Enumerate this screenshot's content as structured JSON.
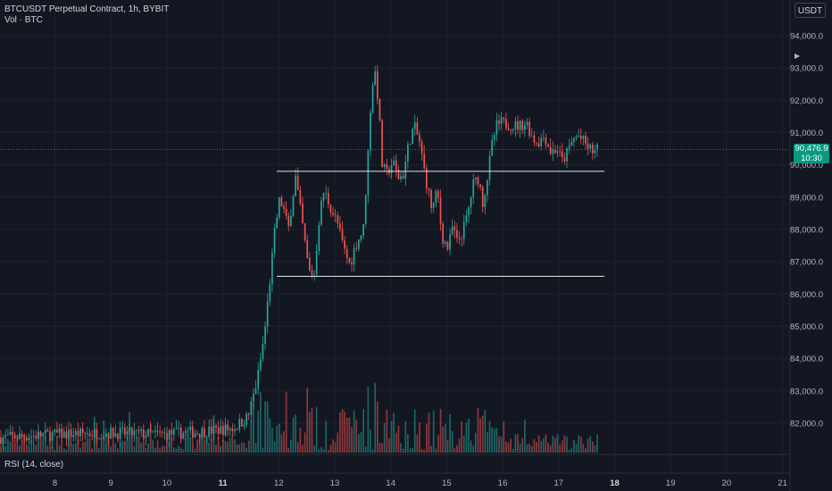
{
  "legend": {
    "title": "BTCUSDT Perpetual Contract, 1h, BYBIT",
    "volume_label": "Vol · BTC"
  },
  "currency": "USDT",
  "last_price": {
    "value": "90,476.9",
    "countdown": "10:30"
  },
  "rsi_label": "RSI (14, close)",
  "colors": {
    "background": "#131722",
    "up": "#26a69a",
    "down": "#ef5350",
    "grid": "#1e222d",
    "text": "#b2b5be",
    "level_line": "#e0e3eb",
    "price_line": "#089981"
  },
  "chart_data": {
    "type": "candlestick",
    "x_axis": {
      "tick_labels": [
        "8",
        "9",
        "10",
        "11",
        "12",
        "13",
        "14",
        "15",
        "16",
        "17",
        "18",
        "19",
        "20",
        "21"
      ],
      "bold_labels": [
        "11",
        "18"
      ]
    },
    "y_axis": {
      "tick_labels": [
        "82,000.0",
        "83,000.0",
        "84,000.0",
        "85,000.0",
        "86,000.0",
        "87,000.0",
        "88,000.0",
        "89,000.0",
        "90,000.0",
        "91,000.0",
        "92,000.0",
        "93,000.0",
        "94,000.0"
      ],
      "ylim": [
        81100,
        94900
      ]
    },
    "horizontal_levels": [
      89800,
      86550
    ],
    "last_price": 90476.9,
    "grid": true
  }
}
